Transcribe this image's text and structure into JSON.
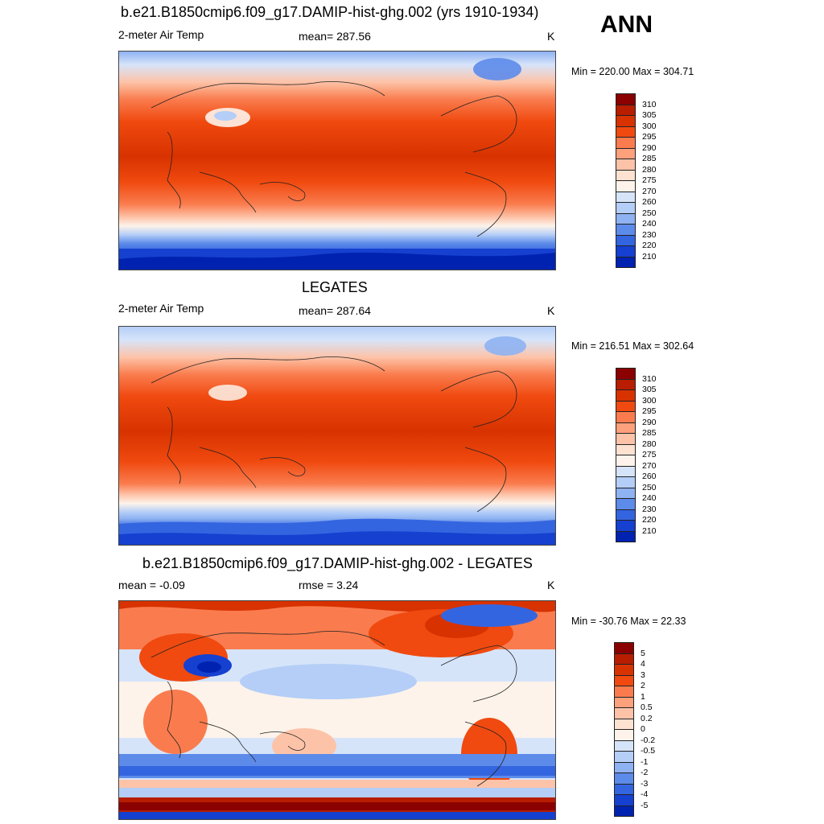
{
  "header": {
    "season": "ANN"
  },
  "panels": [
    {
      "id": "model",
      "title": "b.e21.B1850cmip6.f09_g17.DAMIP-hist-ghg.002 (yrs 1910-1934)",
      "left_label": "2-meter Air Temp",
      "center_label": "mean= 287.56",
      "units": "K",
      "minmax": "Min = 220.00 Max = 304.71",
      "colorbar": {
        "labels": [
          "310",
          "305",
          "300",
          "295",
          "290",
          "285",
          "280",
          "275",
          "270",
          "260",
          "250",
          "240",
          "230",
          "220",
          "210"
        ],
        "colors": [
          "#8b0000",
          "#b81d00",
          "#d83200",
          "#f04a10",
          "#fa7c4e",
          "#fda07c",
          "#fdc3a8",
          "#fde2d2",
          "#fdf3ea",
          "#d6e4fa",
          "#b4cef7",
          "#8eb2f2",
          "#5d8bea",
          "#3465e0",
          "#1540d0",
          "#0022b0"
        ]
      }
    },
    {
      "id": "obs",
      "title": "LEGATES",
      "left_label": "2-meter Air Temp",
      "center_label": "mean= 287.64",
      "units": "K",
      "minmax": "Min = 216.51 Max = 302.64",
      "colorbar": {
        "labels": [
          "310",
          "305",
          "300",
          "295",
          "290",
          "285",
          "280",
          "275",
          "270",
          "260",
          "250",
          "240",
          "230",
          "220",
          "210"
        ],
        "colors": [
          "#8b0000",
          "#b81d00",
          "#d83200",
          "#f04a10",
          "#fa7c4e",
          "#fda07c",
          "#fdc3a8",
          "#fde2d2",
          "#fdf3ea",
          "#d6e4fa",
          "#b4cef7",
          "#8eb2f2",
          "#5d8bea",
          "#3465e0",
          "#1540d0",
          "#0022b0"
        ]
      }
    },
    {
      "id": "diff",
      "title": "b.e21.B1850cmip6.f09_g17.DAMIP-hist-ghg.002 - LEGATES",
      "left_label": "mean =  -0.09",
      "center_label": "rmse =   3.24",
      "units": "K",
      "minmax": "Min = -30.76 Max =  22.33",
      "colorbar": {
        "labels": [
          "5",
          "4",
          "3",
          "2",
          "1",
          "0.5",
          "0.2",
          "0",
          "-0.2",
          "-0.5",
          "-1",
          "-2",
          "-3",
          "-4",
          "-5"
        ],
        "colors": [
          "#8b0000",
          "#b81d00",
          "#d83200",
          "#f04a10",
          "#fa7c4e",
          "#fda07c",
          "#fdc3a8",
          "#fde2d2",
          "#fdf3ea",
          "#d6e4fa",
          "#b4cef7",
          "#8eb2f2",
          "#5d8bea",
          "#3465e0",
          "#1540d0",
          "#0022b0"
        ]
      }
    }
  ]
}
